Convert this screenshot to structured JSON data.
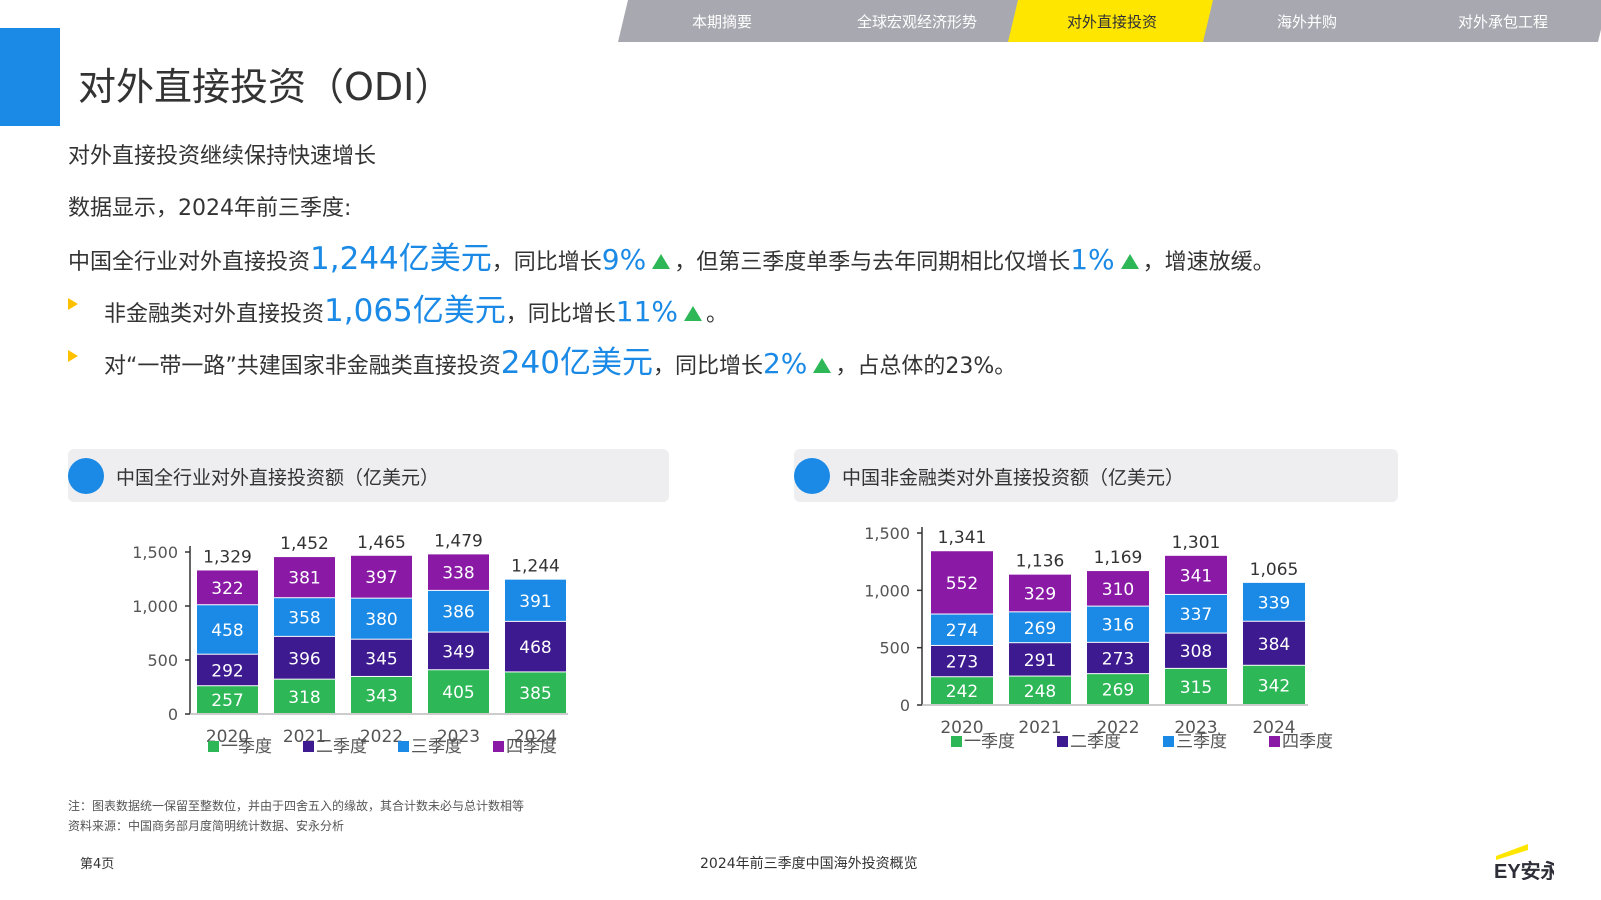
{
  "nav": {
    "tabs": [
      {
        "label": "本期摘要",
        "active": false
      },
      {
        "label": "全球宏观经济形势",
        "active": false
      },
      {
        "label": "对外直接投资",
        "active": true
      },
      {
        "label": "海外并购",
        "active": false
      },
      {
        "label": "对外承包工程",
        "active": false
      }
    ]
  },
  "page_title": "对外直接投资（ODI）",
  "subhead": "对外直接投资继续保持快速增长",
  "intro": "数据显示，2024年前三季度:",
  "line1": {
    "pre": "中国全行业对外直接投资",
    "amount": "1,244",
    "unit": "亿美元",
    "mid": "，同比增长",
    "pct": "9%",
    "mid2": "，但第三季度单季与去年同期相比仅增长",
    "pct2": "1%",
    "post": "，增速放缓。"
  },
  "line2": {
    "pre": "非金融类对外直接投资",
    "amount": "1,065",
    "unit": "亿美元",
    "mid": "，同比增长",
    "pct": "11%",
    "post": "。"
  },
  "line3": {
    "pre": "对“一带一路”共建国家非金融类直接投资",
    "amount": "240",
    "unit": "亿美元",
    "mid": "，同比增长",
    "pct": "2%",
    "post": "，占总体的23%。"
  },
  "colors": {
    "q1": "#2db757",
    "q2": "#3d1a8f",
    "q3": "#1a8ae6",
    "q4": "#8a1aa5",
    "accent": "#1a8ae6",
    "nav_active": "#ffe600",
    "nav_inactive": "#a8a8b0",
    "up_arrow": "#2db757",
    "bullet": "#ffc000"
  },
  "chart_data": [
    {
      "type": "bar",
      "stacked": true,
      "title": "中国全行业对外直接投资额（亿美元）",
      "categories": [
        "2020",
        "2021",
        "2022",
        "2023",
        "2024"
      ],
      "series": [
        {
          "name": "一季度",
          "values": [
            257,
            318,
            343,
            405,
            385
          ]
        },
        {
          "name": "二季度",
          "values": [
            292,
            396,
            345,
            349,
            468
          ]
        },
        {
          "name": "三季度",
          "values": [
            458,
            358,
            380,
            386,
            391
          ]
        },
        {
          "name": "四季度",
          "values": [
            322,
            381,
            397,
            338,
            null
          ]
        }
      ],
      "totals": [
        "1,329",
        "1,452",
        "1,465",
        "1,479",
        "1,244"
      ],
      "yticks": [
        "0",
        "500",
        "1,000",
        "1,500"
      ],
      "ylim": [
        0,
        1500
      ],
      "legend": "bottom",
      "grid": false
    },
    {
      "type": "bar",
      "stacked": true,
      "title": "中国非金融类对外直接投资额（亿美元）",
      "categories": [
        "2020",
        "2021",
        "2022",
        "2023",
        "2024"
      ],
      "series": [
        {
          "name": "一季度",
          "values": [
            242,
            248,
            269,
            315,
            342
          ]
        },
        {
          "name": "二季度",
          "values": [
            273,
            291,
            273,
            308,
            384
          ]
        },
        {
          "name": "三季度",
          "values": [
            274,
            269,
            316,
            337,
            339
          ]
        },
        {
          "name": "四季度",
          "values": [
            552,
            329,
            310,
            341,
            null
          ]
        }
      ],
      "totals": [
        "1,341",
        "1,136",
        "1,169",
        "1,301",
        "1,065"
      ],
      "yticks": [
        "0",
        "500",
        "1,000",
        "1,500"
      ],
      "ylim": [
        0,
        1500
      ],
      "legend": "bottom",
      "grid": false
    }
  ],
  "notes": {
    "note1": "注：图表数据统一保留至整数位，并由于四舍五入的缘故，其合计数未必与总计数相等",
    "note2": "资料来源：中国商务部月度简明统计数据、安永分析"
  },
  "footer": {
    "page": "第4页",
    "title": "2024年前三季度中国海外投资概览",
    "logo_text": "EY安永"
  }
}
